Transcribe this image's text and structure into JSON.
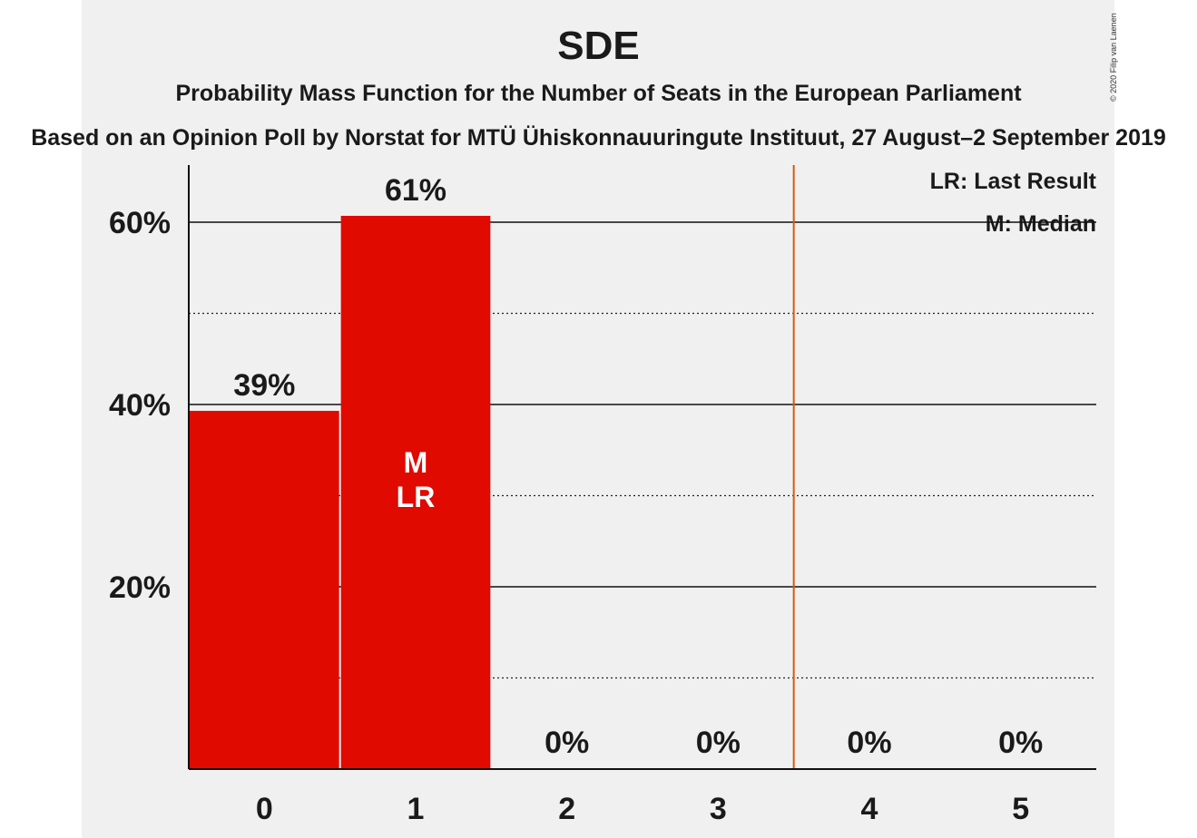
{
  "copyright": "© 2020 Filip van Laenen",
  "chart_data": {
    "type": "bar",
    "title": "SDE",
    "subtitle": "Probability Mass Function for the Number of Seats in the European Parliament",
    "subtitle2": "Based on an Opinion Poll by Norstat for MTÜ Ühiskonnauuringute Instituut, 27 August–2 September 2019",
    "categories": [
      "0",
      "1",
      "2",
      "3",
      "4",
      "5"
    ],
    "values": [
      39.3,
      60.7,
      0,
      0,
      0,
      0
    ],
    "value_labels": [
      "39%",
      "61%",
      "0%",
      "0%",
      "0%",
      "0%"
    ],
    "ylim": [
      0,
      66
    ],
    "ytick_labels": [
      {
        "value": 20,
        "label": "20%"
      },
      {
        "value": 40,
        "label": "40%"
      },
      {
        "value": 60,
        "label": "60%"
      }
    ],
    "minor_gridlines": [
      10,
      30,
      50
    ],
    "bar_color": "#e00a00",
    "median_category": "1",
    "last_result_category": "1",
    "bar_markers": [
      "M",
      "LR"
    ],
    "threshold_line": {
      "between": [
        "3",
        "4"
      ],
      "color": "#d65a12"
    },
    "legend": {
      "position": "top-right",
      "entries": [
        "LR: Last Result",
        "M: Median"
      ]
    }
  }
}
